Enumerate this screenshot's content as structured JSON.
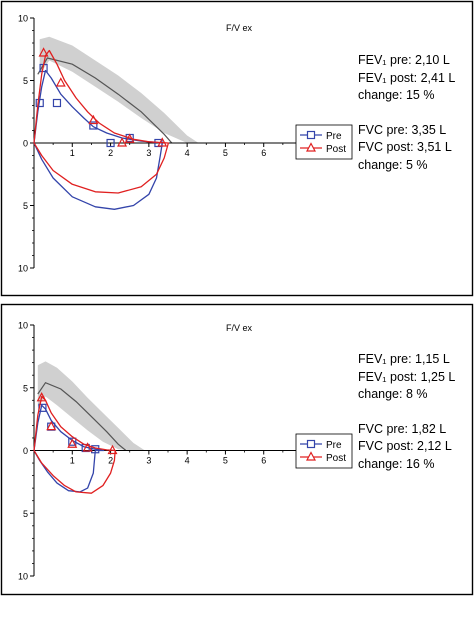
{
  "colors": {
    "pre": "#3344aa",
    "post": "#e02020",
    "reference": "#555555",
    "band": "#d0d0d0",
    "axis": "#000000",
    "frame": "#000000"
  },
  "chart_data": [
    {
      "type": "line",
      "title": "F/V ex",
      "xlim": [
        0,
        7
      ],
      "ylim": [
        -10,
        10
      ],
      "x_ticks": [
        1,
        2,
        3,
        4,
        5,
        6
      ],
      "y_tick_values": [
        10,
        5,
        0,
        -5,
        -10
      ],
      "y_tick_labels": [
        "10",
        "5",
        "0",
        "5",
        "10"
      ],
      "legend": {
        "position": "right",
        "entries": [
          "Pre",
          "Post"
        ]
      },
      "grid": false,
      "reference_band": {
        "x": [
          0.15,
          0.4,
          1.0,
          1.6,
          2.2,
          2.8,
          3.4,
          4.0,
          4.3
        ],
        "upper": [
          8.3,
          8.5,
          7.8,
          6.6,
          5.4,
          4.0,
          2.4,
          0.6,
          0
        ],
        "lower": [
          5.5,
          6.6,
          5.7,
          4.5,
          3.3,
          2.0,
          0.8,
          0,
          0
        ]
      },
      "reference_line": {
        "x": [
          0.1,
          0.35,
          1.0,
          1.6,
          2.2,
          2.8,
          3.4,
          3.6
        ],
        "y": [
          5.5,
          6.8,
          6.3,
          5.2,
          3.9,
          2.5,
          0.7,
          0
        ]
      },
      "series": [
        {
          "name": "Pre",
          "expiratory": {
            "x": [
              0,
              0.1,
              0.2,
              0.3,
              0.45,
              0.7,
              1.0,
              1.3,
              1.55,
              1.9,
              2.3,
              2.8,
              3.2,
              3.35
            ],
            "y": [
              0,
              2.5,
              4.5,
              5.8,
              5.2,
              3.9,
              2.9,
              2.0,
              1.3,
              0.8,
              0.4,
              0.15,
              0.05,
              0
            ]
          },
          "inspiratory": {
            "x": [
              0,
              0.2,
              0.5,
              1.0,
              1.6,
              2.1,
              2.6,
              3.0,
              3.2,
              3.3,
              3.35
            ],
            "y": [
              0,
              -1.3,
              -2.8,
              -4.3,
              -5.1,
              -5.3,
              -5.0,
              -4.1,
              -2.8,
              -1.0,
              0
            ]
          },
          "markers": {
            "x": [
              0.15,
              0.25,
              0.6,
              1.55,
              2.0,
              2.5,
              3.25
            ],
            "y": [
              3.2,
              6.0,
              3.2,
              1.4,
              0,
              0.4,
              0
            ]
          },
          "FEV1_L": 2.1,
          "FVC_L": 3.35
        },
        {
          "name": "Post",
          "expiratory": {
            "x": [
              0,
              0.1,
              0.2,
              0.3,
              0.4,
              0.6,
              0.8,
              1.1,
              1.4,
              1.7,
              2.1,
              2.6,
              3.0,
              3.51
            ],
            "y": [
              0,
              3.0,
              5.5,
              7.0,
              7.4,
              6.3,
              5.0,
              3.6,
              2.5,
              1.6,
              0.8,
              0.3,
              0.1,
              0
            ]
          },
          "inspiratory": {
            "x": [
              0,
              0.2,
              0.5,
              1.0,
              1.6,
              2.2,
              2.8,
              3.2,
              3.4,
              3.51
            ],
            "y": [
              0,
              -1.0,
              -2.2,
              -3.3,
              -3.9,
              -4.0,
              -3.5,
              -2.5,
              -1.2,
              0
            ]
          },
          "markers": {
            "x": [
              0.25,
              0.7,
              1.55,
              2.3,
              2.5,
              3.35
            ],
            "y": [
              7.2,
              4.8,
              1.8,
              0,
              0.3,
              0
            ]
          },
          "FEV1_L": 2.41,
          "FVC_L": 3.51
        }
      ],
      "stats": {
        "fev1_pre": "FEV₁ pre: 2,10 L",
        "fev1_post": "FEV₁ post: 2,41 L",
        "fev1_change": "change: 15 %",
        "fvc_pre": "FVC pre: 3,35 L",
        "fvc_post": "FVC post: 3,51 L",
        "fvc_change": "change: 5 %"
      }
    },
    {
      "type": "line",
      "title": "F/V ex",
      "xlim": [
        0,
        7
      ],
      "ylim": [
        -10,
        10
      ],
      "x_ticks": [
        1,
        2,
        3,
        4,
        5,
        6
      ],
      "y_tick_values": [
        10,
        5,
        0,
        -5,
        -10
      ],
      "y_tick_labels": [
        "10",
        "5",
        "0",
        "5",
        "10"
      ],
      "legend": {
        "position": "right",
        "entries": [
          "Pre",
          "Post"
        ]
      },
      "grid": false,
      "reference_band": {
        "x": [
          0.1,
          0.3,
          0.6,
          1.0,
          1.4,
          1.8,
          2.2,
          2.6,
          2.9
        ],
        "upper": [
          6.8,
          7.1,
          6.6,
          5.5,
          4.2,
          3.0,
          1.8,
          0.6,
          0
        ],
        "lower": [
          3.5,
          4.3,
          3.6,
          2.6,
          1.6,
          0.7,
          0.1,
          0,
          0
        ]
      },
      "reference_line": {
        "x": [
          0.1,
          0.3,
          0.7,
          1.1,
          1.5,
          1.9,
          2.2,
          2.4
        ],
        "y": [
          4.5,
          5.4,
          4.9,
          3.9,
          2.7,
          1.5,
          0.5,
          0
        ]
      },
      "series": [
        {
          "name": "Pre",
          "expiratory": {
            "x": [
              0,
              0.1,
              0.2,
              0.3,
              0.45,
              0.7,
              1.0,
              1.3,
              1.6,
              1.82
            ],
            "y": [
              0,
              2.2,
              3.6,
              3.3,
              2.4,
              1.5,
              0.8,
              0.3,
              0.1,
              0
            ]
          },
          "inspiratory": {
            "x": [
              0,
              0.15,
              0.35,
              0.6,
              0.9,
              1.2,
              1.4,
              1.55,
              1.6
            ],
            "y": [
              0,
              -0.8,
              -1.7,
              -2.6,
              -3.2,
              -3.3,
              -3.0,
              -1.8,
              0
            ]
          },
          "markers": {
            "x": [
              0.22,
              0.45,
              1.0,
              1.35,
              1.6
            ],
            "y": [
              3.4,
              1.9,
              0.7,
              0.2,
              0.1
            ]
          },
          "FEV1_L": 1.15,
          "FVC_L": 1.82
        },
        {
          "name": "Post",
          "expiratory": {
            "x": [
              0,
              0.1,
              0.2,
              0.3,
              0.45,
              0.7,
              1.0,
              1.3,
              1.6,
              1.9,
              2.12
            ],
            "y": [
              0,
              2.8,
              4.3,
              4.0,
              3.0,
              1.9,
              1.1,
              0.5,
              0.2,
              0.05,
              0
            ]
          },
          "inspiratory": {
            "x": [
              0,
              0.2,
              0.5,
              0.8,
              1.1,
              1.5,
              1.8,
              2.0,
              2.1,
              2.12
            ],
            "y": [
              0,
              -1.0,
              -2.0,
              -2.8,
              -3.3,
              -3.4,
              -2.8,
              -1.8,
              -0.8,
              0
            ]
          },
          "markers": {
            "x": [
              0.2,
              0.45,
              1.0,
              1.4,
              2.05
            ],
            "y": [
              4.2,
              1.9,
              0.5,
              0.2,
              0
            ]
          },
          "FEV1_L": 1.25,
          "FVC_L": 2.12
        }
      ],
      "stats": {
        "fev1_pre": "FEV₁ pre: 1,15 L",
        "fev1_post": "FEV₁ post: 1,25 L",
        "fev1_change": "change: 8 %",
        "fvc_pre": "FVC pre: 1,82 L",
        "fvc_post": "FVC post: 2,12 L",
        "fvc_change": "change: 16 %"
      }
    }
  ]
}
